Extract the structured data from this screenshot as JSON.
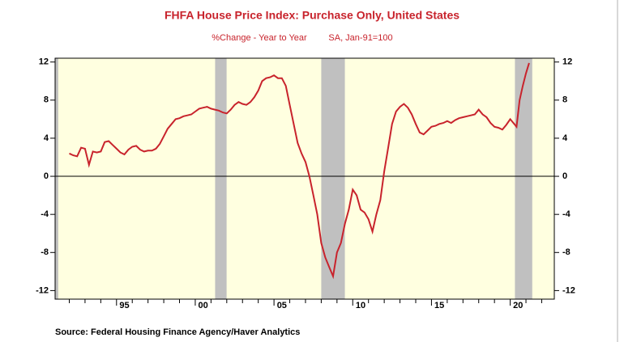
{
  "chart_data": {
    "type": "line",
    "title": "FHFA House Price Index: Purchase Only, United States",
    "subtitle": [
      "%Change - Year to Year",
      "SA, Jan-91=100"
    ],
    "source": "Source:  Federal Housing Finance Agency/Haver Analytics",
    "xlim": [
      1991.1,
      2022.8
    ],
    "ylim": [
      -12.9,
      12.4
    ],
    "yticks": [
      12,
      8,
      4,
      0,
      -4,
      -8,
      -12
    ],
    "y2lim": [
      -12.9,
      12.4
    ],
    "y2ticks": [
      12,
      8,
      4,
      0,
      -4,
      -8,
      -12
    ],
    "xticks": [
      {
        "value": 1995,
        "label": "95"
      },
      {
        "value": 2000,
        "label": "00"
      },
      {
        "value": 2005,
        "label": "05"
      },
      {
        "value": 2010,
        "label": "10"
      },
      {
        "value": 2015,
        "label": "15"
      },
      {
        "value": 2020,
        "label": "20"
      }
    ],
    "xminor_ticks": [
      1992,
      1993,
      1994,
      1996,
      1997,
      1998,
      1999,
      2001,
      2002,
      2003,
      2004,
      2006,
      2007,
      2008,
      2009,
      2011,
      2012,
      2013,
      2014,
      2016,
      2017,
      2018,
      2019,
      2021,
      2022
    ],
    "background": "#ffffe0",
    "shading_color": "#c0c0c0",
    "recessions": [
      [
        1991.1,
        1991.3
      ],
      [
        2001.26,
        2001.99
      ],
      [
        2008.0,
        2009.5
      ],
      [
        2020.3,
        2021.4
      ]
    ],
    "zero_line": true,
    "series": [
      {
        "name": "FHFA HPI",
        "color": "#c8232c",
        "x": [
          1992.0,
          1992.25,
          1992.5,
          1992.75,
          1993.0,
          1993.25,
          1993.5,
          1993.75,
          1994.0,
          1994.25,
          1994.5,
          1994.75,
          1995.0,
          1995.25,
          1995.5,
          1995.75,
          1996.0,
          1996.25,
          1996.5,
          1996.75,
          1997.0,
          1997.25,
          1997.5,
          1997.75,
          1998.0,
          1998.25,
          1998.5,
          1998.75,
          1999.0,
          1999.25,
          1999.5,
          1999.75,
          2000.0,
          2000.25,
          2000.5,
          2000.75,
          2001.0,
          2001.25,
          2001.5,
          2001.75,
          2002.0,
          2002.25,
          2002.5,
          2002.75,
          2003.0,
          2003.25,
          2003.5,
          2003.75,
          2004.0,
          2004.25,
          2004.5,
          2004.75,
          2005.0,
          2005.25,
          2005.5,
          2005.75,
          2006.0,
          2006.25,
          2006.5,
          2006.75,
          2007.0,
          2007.25,
          2007.5,
          2007.75,
          2008.0,
          2008.25,
          2008.5,
          2008.75,
          2009.0,
          2009.25,
          2009.5,
          2009.75,
          2010.0,
          2010.25,
          2010.5,
          2010.75,
          2011.0,
          2011.25,
          2011.5,
          2011.75,
          2012.0,
          2012.25,
          2012.5,
          2012.75,
          2013.0,
          2013.25,
          2013.5,
          2013.75,
          2014.0,
          2014.25,
          2014.5,
          2014.75,
          2015.0,
          2015.25,
          2015.5,
          2015.75,
          2016.0,
          2016.25,
          2016.5,
          2016.75,
          2017.0,
          2017.25,
          2017.5,
          2017.75,
          2018.0,
          2018.25,
          2018.5,
          2018.75,
          2019.0,
          2019.25,
          2019.5,
          2019.75,
          2020.0,
          2020.4,
          2020.6,
          2020.8,
          2021.0,
          2021.2
        ],
        "values": [
          2.4,
          2.2,
          2.1,
          3.0,
          2.9,
          1.2,
          2.6,
          2.5,
          2.6,
          3.6,
          3.7,
          3.3,
          2.9,
          2.5,
          2.3,
          2.8,
          3.1,
          3.2,
          2.8,
          2.6,
          2.7,
          2.7,
          2.9,
          3.4,
          4.2,
          5.0,
          5.5,
          6.0,
          6.1,
          6.3,
          6.4,
          6.5,
          6.8,
          7.1,
          7.2,
          7.3,
          7.1,
          7.0,
          6.9,
          6.7,
          6.6,
          7.0,
          7.5,
          7.8,
          7.6,
          7.5,
          7.8,
          8.3,
          9.0,
          10.0,
          10.3,
          10.4,
          10.6,
          10.3,
          10.3,
          9.5,
          7.5,
          5.5,
          3.5,
          2.4,
          1.5,
          0.0,
          -2.0,
          -4.0,
          -7.0,
          -8.5,
          -9.5,
          -10.5,
          -8.0,
          -7.0,
          -5.0,
          -3.5,
          -1.4,
          -2.0,
          -3.5,
          -3.8,
          -4.5,
          -5.8,
          -4.0,
          -2.5,
          0.5,
          3.0,
          5.5,
          6.8,
          7.3,
          7.6,
          7.2,
          6.5,
          5.5,
          4.6,
          4.4,
          4.8,
          5.2,
          5.3,
          5.5,
          5.6,
          5.8,
          5.6,
          5.9,
          6.1,
          6.2,
          6.3,
          6.4,
          6.5,
          7.0,
          6.5,
          6.2,
          5.6,
          5.2,
          5.1,
          4.9,
          5.4,
          6.0,
          5.2,
          8.0,
          9.5,
          10.8,
          11.9
        ]
      }
    ]
  }
}
